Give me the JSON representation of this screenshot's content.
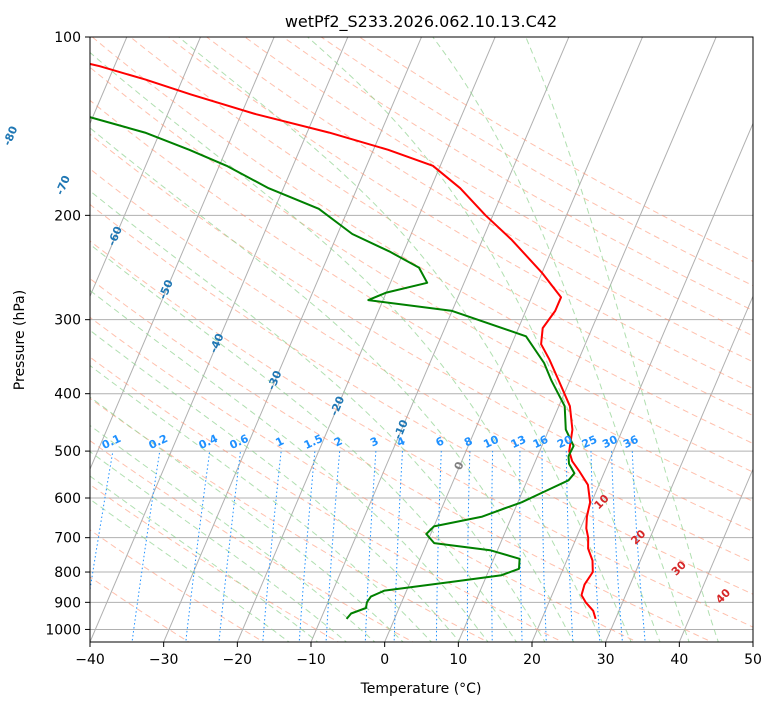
{
  "chart_data": {
    "type": "line",
    "title": "wetPf2_S233.2026.062.10.13.C42",
    "xlabel": "Temperature (°C)",
    "ylabel": "Pressure (hPa)",
    "xlim": [
      -40,
      50
    ],
    "ylim": [
      1050,
      100
    ],
    "x_ticks": [
      -40,
      -30,
      -20,
      -10,
      0,
      10,
      20,
      30,
      40,
      50
    ],
    "y_ticks": [
      1000,
      900,
      800,
      700,
      600,
      500,
      400,
      300,
      200,
      100
    ],
    "grid": true,
    "colors": {
      "temperature": "#ff0000",
      "dewpoint": "#008000",
      "isotherm": "#b0b0b0",
      "dry_adiabat": "#ff8c69",
      "moist_adiabat": "#8fd18f",
      "mixing_ratio": "#1e90ff",
      "mixing_ratio_label": "#1e90ff",
      "isotherm_label": "#1f77b4",
      "dry_adiabat_label": "#d62728",
      "zero_label": "#808080"
    },
    "series": [
      {
        "name": "Temperature",
        "points": [
          [
            27.3,
            960
          ],
          [
            26.5,
            930
          ],
          [
            25.0,
            900
          ],
          [
            24.0,
            875
          ],
          [
            23.8,
            840
          ],
          [
            24.2,
            800
          ],
          [
            23.5,
            765
          ],
          [
            22.2,
            730
          ],
          [
            21.6,
            700
          ],
          [
            20.8,
            675
          ],
          [
            20.2,
            645
          ],
          [
            19.8,
            610
          ],
          [
            18.5,
            570
          ],
          [
            16.5,
            540
          ],
          [
            15.0,
            520
          ],
          [
            14.0,
            500
          ],
          [
            13.2,
            460
          ],
          [
            11.5,
            420
          ],
          [
            8.5,
            380
          ],
          [
            6.0,
            350
          ],
          [
            4.0,
            330
          ],
          [
            3.3,
            310
          ],
          [
            4.0,
            290
          ],
          [
            4.0,
            275
          ],
          [
            0.0,
            250
          ],
          [
            -6.0,
            220
          ],
          [
            -11.0,
            200
          ],
          [
            -16.0,
            180
          ],
          [
            -21.0,
            165
          ],
          [
            -28.0,
            155
          ],
          [
            -37.0,
            145
          ],
          [
            -48.0,
            135
          ],
          [
            -58.0,
            125
          ],
          [
            -65.0,
            118
          ],
          [
            -72.0,
            112
          ],
          [
            -78.0,
            108
          ],
          [
            -84.0,
            104
          ],
          [
            -90.0,
            100
          ]
        ]
      },
      {
        "name": "Dewpoint",
        "points": [
          [
            -6.5,
            960
          ],
          [
            -6.2,
            940
          ],
          [
            -4.5,
            920
          ],
          [
            -4.7,
            900
          ],
          [
            -4.5,
            880
          ],
          [
            -3.0,
            860
          ],
          [
            6.0,
            830
          ],
          [
            12.0,
            810
          ],
          [
            14.0,
            790
          ],
          [
            13.5,
            760
          ],
          [
            9.0,
            735
          ],
          [
            1.0,
            715
          ],
          [
            -0.6,
            690
          ],
          [
            0.0,
            670
          ],
          [
            6.0,
            645
          ],
          [
            8.5,
            625
          ],
          [
            10.5,
            610
          ],
          [
            13.0,
            585
          ],
          [
            15.6,
            560
          ],
          [
            16.0,
            545
          ],
          [
            14.7,
            525
          ],
          [
            14.2,
            510
          ],
          [
            14.3,
            490
          ],
          [
            12.3,
            460
          ],
          [
            10.8,
            420
          ],
          [
            7.5,
            380
          ],
          [
            5.5,
            355
          ],
          [
            1.5,
            320
          ],
          [
            -10.0,
            290
          ],
          [
            -22.0,
            278
          ],
          [
            -20.0,
            270
          ],
          [
            -15.0,
            260
          ],
          [
            -17.0,
            245
          ],
          [
            -22.0,
            230
          ],
          [
            -28.0,
            215
          ],
          [
            -34.0,
            195
          ],
          [
            -42.0,
            180
          ],
          [
            -49.0,
            165
          ],
          [
            -55.0,
            155
          ],
          [
            -62.0,
            145
          ],
          [
            -72.0,
            135
          ],
          [
            -82.0,
            125
          ],
          [
            -89.0,
            115
          ],
          [
            -93.0,
            108
          ],
          [
            -92.0,
            104
          ],
          [
            -87.0,
            100
          ]
        ]
      }
    ],
    "isotherm_labels": [
      "-100",
      "-90",
      "-80",
      "-70",
      "-60",
      "-50",
      "-40",
      "-30",
      "-20",
      "-10",
      "0"
    ],
    "mixing_ratio_labels": [
      "0.1",
      "0.2",
      "0.4",
      "0.6",
      "1",
      "1.5",
      "2",
      "3",
      "4",
      "6",
      "8",
      "10",
      "13",
      "16",
      "20",
      "25",
      "30",
      "36"
    ],
    "dry_adiabat_labels": [
      "10",
      "20",
      "30",
      "40"
    ]
  }
}
